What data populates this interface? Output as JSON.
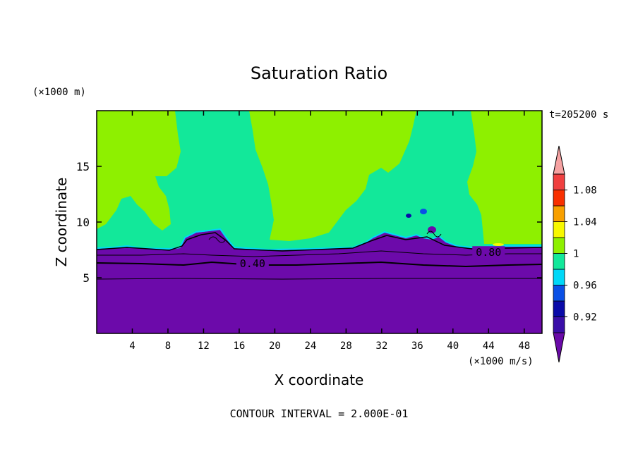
{
  "chart_data": {
    "type": "heatmap",
    "title": "Saturation Ratio",
    "xlabel": "X coordinate",
    "ylabel": "Z coordinate",
    "x_unit": "(×1000 m/s)",
    "y_unit": "(×1000 m)",
    "time_label": "t=205200 s",
    "footer": "CONTOUR INTERVAL = 2.000E-01",
    "xlim": [
      0,
      50
    ],
    "ylim": [
      0,
      20
    ],
    "x_ticks": [
      "4",
      "8",
      "12",
      "16",
      "20",
      "24",
      "28",
      "32",
      "36",
      "40",
      "44",
      "48"
    ],
    "x_tick_values": [
      4,
      8,
      12,
      16,
      20,
      24,
      28,
      32,
      36,
      40,
      44,
      48
    ],
    "y_ticks": [
      "5",
      "10",
      "15"
    ],
    "y_tick_values": [
      5,
      10,
      15
    ],
    "contour_labels": [
      {
        "text": "0.40",
        "x": 17.5,
        "z": 6.2
      },
      {
        "text": "0.80",
        "x": 44.0,
        "z": 7.2
      }
    ],
    "colorbar": {
      "labels": [
        "0.92",
        "0.96",
        "1",
        "1.04",
        "1.08"
      ],
      "levels": [
        0.9,
        0.92,
        0.94,
        0.96,
        0.98,
        1.0,
        1.02,
        1.04,
        1.06,
        1.08,
        1.1
      ],
      "colors": [
        "#6a0aa8",
        "#3a0ea8",
        "#0a0aa8",
        "#0a50e6",
        "#00d8f8",
        "#12e89a",
        "#8ef000",
        "#f8f800",
        "#f8a000",
        "#f83000",
        "#f04040",
        "#f6a2a2"
      ]
    },
    "regions": {
      "dry_layer_color": "#6c0aaa",
      "cloud_top_z": 7.6,
      "upper_colors": {
        "greenish_cyan": "#12e89a",
        "lime": "#8ef000"
      }
    }
  }
}
